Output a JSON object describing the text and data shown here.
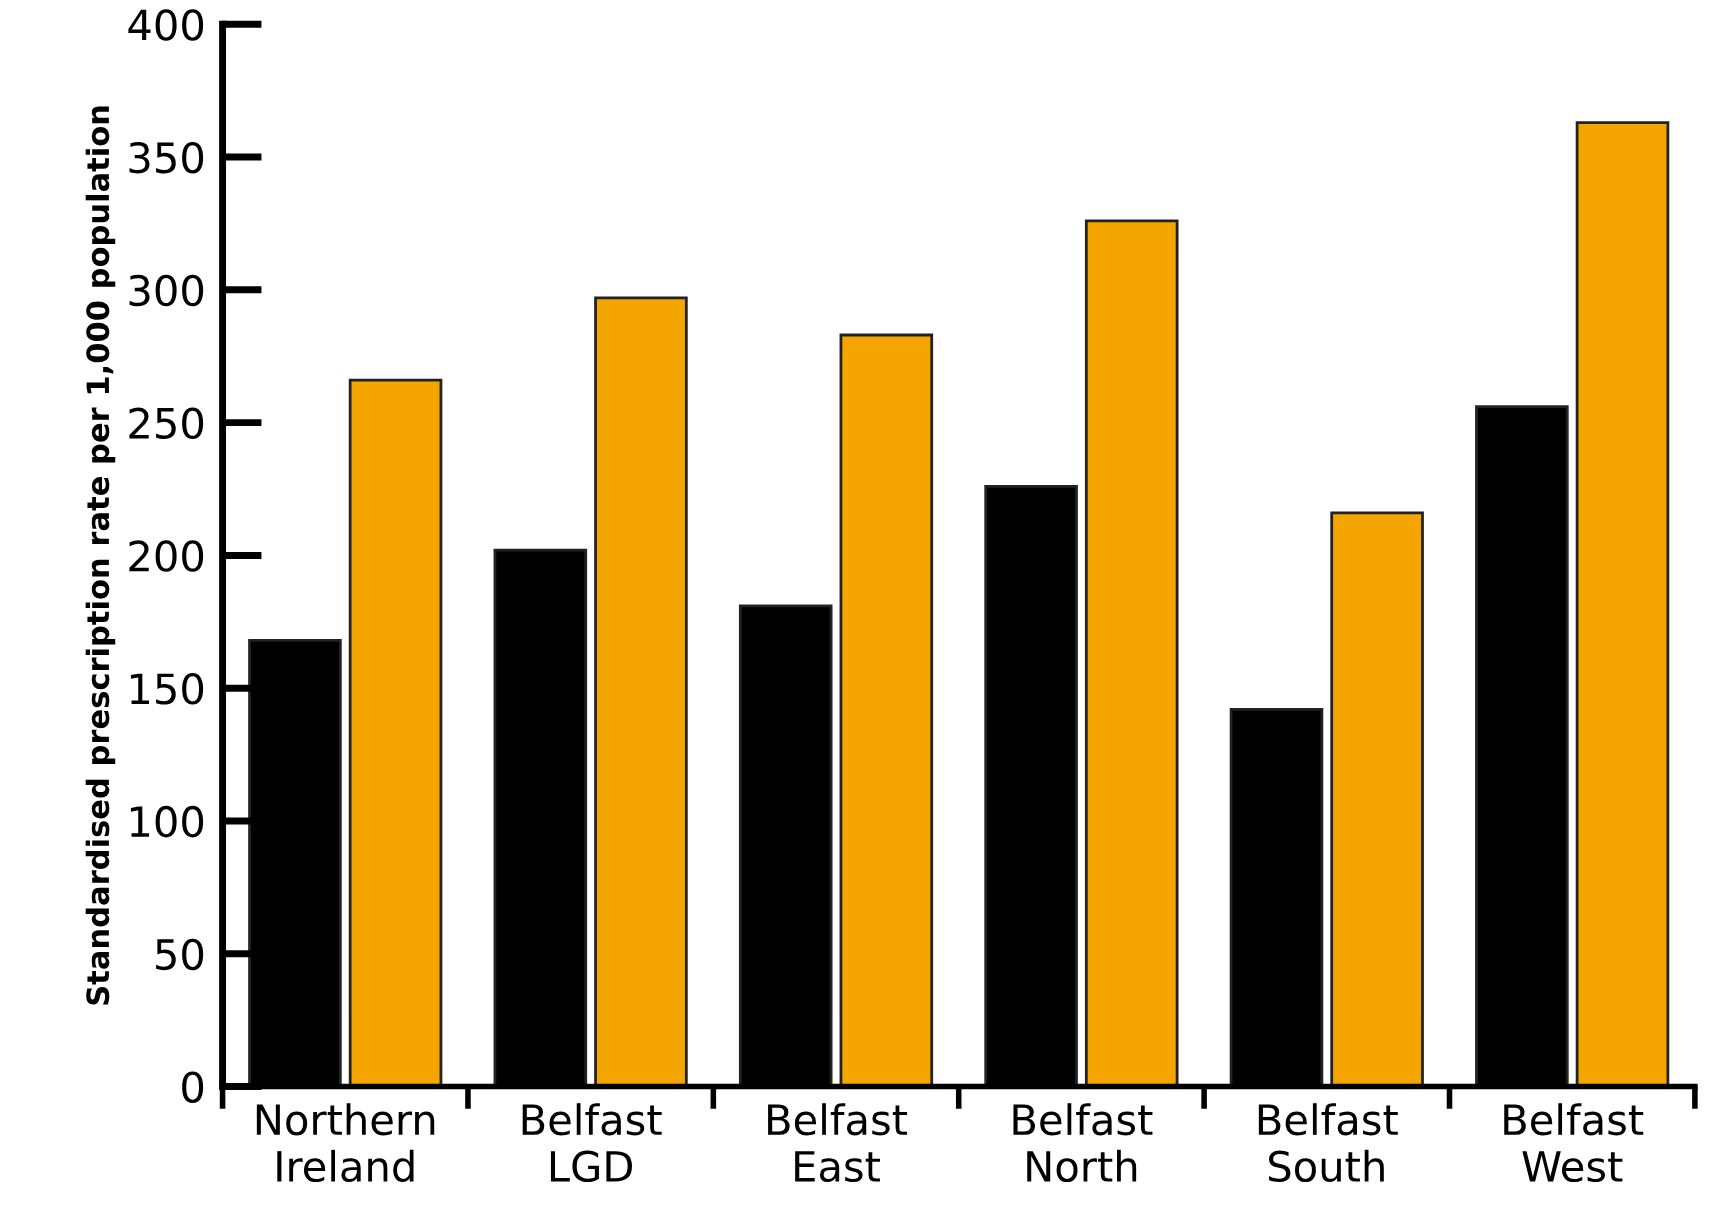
{
  "chart_data": {
    "type": "bar",
    "ylabel": "Standardised prescription rate per 1,000 population",
    "categories": [
      "Northern\nIreland",
      "Belfast\nLGD",
      "Belfast\nEast",
      "Belfast\nNorth",
      "Belfast\nSouth",
      "Belfast\nWest"
    ],
    "series": [
      {
        "color": "#000000",
        "values": [
          168,
          202,
          181,
          226,
          142,
          256
        ]
      },
      {
        "color": "#f5a500",
        "values": [
          266,
          297,
          283,
          326,
          216,
          363
        ]
      }
    ],
    "ylim": [
      0,
      400
    ],
    "yticks": [
      0,
      50,
      100,
      150,
      200,
      250,
      300,
      350,
      400
    ],
    "grid": false,
    "legend": false
  }
}
